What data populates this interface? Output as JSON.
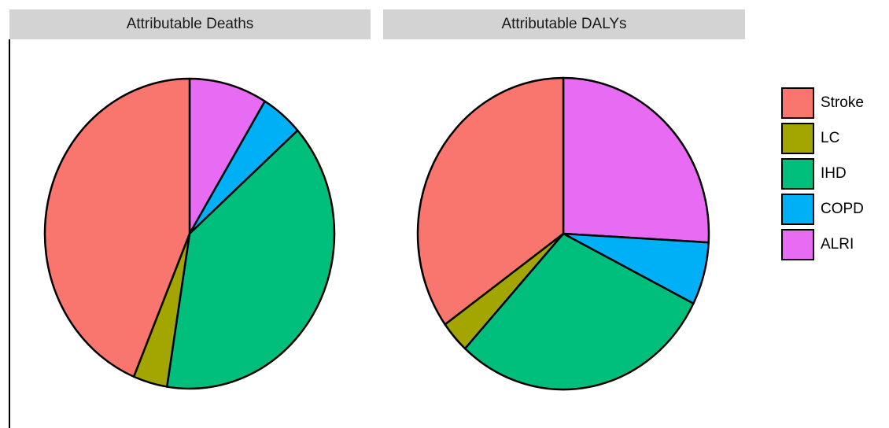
{
  "chart_data": [
    {
      "type": "pie",
      "title": "Attributable Deaths",
      "categories": [
        "Stroke",
        "LC",
        "IHD",
        "COPD",
        "ALRI"
      ],
      "values": [
        43.7,
        3.8,
        39.1,
        4.7,
        8.7
      ]
    },
    {
      "type": "pie",
      "title": "Attributable DALYs",
      "categories": [
        "Stroke",
        "LC",
        "IHD",
        "COPD",
        "ALRI"
      ],
      "values": [
        34.9,
        3.3,
        29.4,
        6.5,
        25.9
      ]
    }
  ],
  "legend": {
    "placement": "right",
    "items": [
      {
        "label": "Stroke",
        "color": "#F8766D"
      },
      {
        "label": "LC",
        "color": "#A3A500"
      },
      {
        "label": "IHD",
        "color": "#00BF7D"
      },
      {
        "label": "COPD",
        "color": "#00B0F6"
      },
      {
        "label": "ALRI",
        "color": "#E76BF3"
      }
    ]
  },
  "colors": {
    "Stroke": "#F8766D",
    "LC": "#A3A500",
    "IHD": "#00BF7D",
    "COPD": "#00B0F6",
    "ALRI": "#E76BF3",
    "outline": "#000000",
    "strip": "#D3D3D3"
  }
}
